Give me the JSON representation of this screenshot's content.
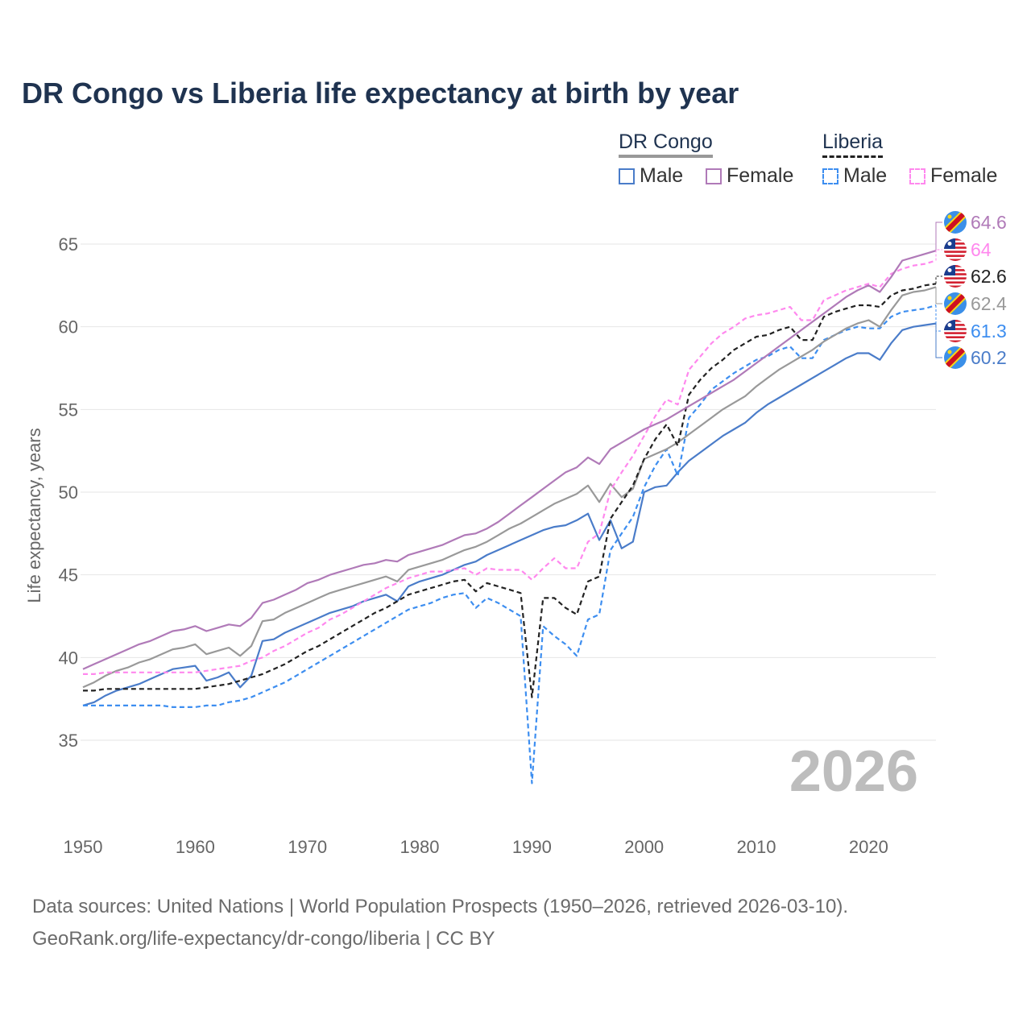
{
  "chart_data": {
    "type": "line",
    "title": "DR Congo vs Liberia life expectancy at birth by year",
    "ylabel": "Life expectancy, years",
    "xlabel": "",
    "xlim": [
      1950,
      2026
    ],
    "ylim": [
      30,
      67
    ],
    "x_ticks": [
      1950,
      1960,
      1970,
      1980,
      1990,
      2000,
      2010,
      2020
    ],
    "y_ticks": [
      35,
      40,
      45,
      50,
      55,
      60,
      65
    ],
    "grid": true,
    "watermark_year": "2026",
    "x_start": 1950,
    "legend": {
      "groups": [
        {
          "name": "DR Congo",
          "items": [
            "Male",
            "Female"
          ]
        },
        {
          "name": "Liberia",
          "items": [
            "Male",
            "Female"
          ]
        }
      ],
      "placement": "top-right"
    },
    "series": [
      {
        "name": "DR Congo Female",
        "country": "DR Congo",
        "flag": "drc",
        "color": "#b07ab8",
        "dashed": false,
        "end_label": "64.6",
        "values": [
          39.3,
          39.6,
          39.9,
          40.2,
          40.5,
          40.8,
          41.0,
          41.3,
          41.6,
          41.7,
          41.9,
          41.6,
          41.8,
          42.0,
          41.9,
          42.4,
          43.3,
          43.5,
          43.8,
          44.1,
          44.5,
          44.7,
          45.0,
          45.2,
          45.4,
          45.6,
          45.7,
          45.9,
          45.8,
          46.2,
          46.4,
          46.6,
          46.8,
          47.1,
          47.4,
          47.5,
          47.8,
          48.2,
          48.7,
          49.2,
          49.7,
          50.2,
          50.7,
          51.2,
          51.5,
          52.1,
          51.7,
          52.6,
          53.0,
          53.4,
          53.8,
          54.1,
          54.4,
          54.8,
          55.2,
          55.6,
          56.0,
          56.4,
          56.8,
          57.3,
          57.8,
          58.3,
          58.8,
          59.3,
          59.8,
          60.3,
          60.8,
          61.3,
          61.8,
          62.2,
          62.5,
          62.1,
          63.0,
          64.0,
          64.2,
          64.4,
          64.6
        ]
      },
      {
        "name": "Liberia Female",
        "country": "Liberia",
        "flag": "lr",
        "color": "#ff88ee",
        "dashed": true,
        "end_label": "64",
        "values": [
          39.0,
          39.0,
          39.1,
          39.1,
          39.1,
          39.1,
          39.1,
          39.1,
          39.1,
          39.1,
          39.1,
          39.2,
          39.3,
          39.4,
          39.5,
          39.8,
          40.0,
          40.4,
          40.7,
          41.1,
          41.5,
          41.8,
          42.3,
          42.6,
          43.0,
          43.4,
          43.8,
          44.2,
          44.5,
          44.8,
          45.0,
          45.2,
          45.2,
          45.3,
          45.4,
          45.0,
          45.4,
          45.3,
          45.3,
          45.3,
          44.7,
          45.4,
          46.0,
          45.4,
          45.4,
          47.0,
          47.5,
          50.1,
          51.2,
          52.2,
          53.4,
          54.6,
          55.6,
          55.3,
          57.4,
          58.2,
          59.0,
          59.6,
          60.0,
          60.5,
          60.7,
          60.8,
          61.0,
          61.2,
          60.4,
          60.4,
          61.6,
          61.9,
          62.2,
          62.4,
          62.6,
          62.4,
          63.2,
          63.5,
          63.7,
          63.8,
          64.0
        ]
      },
      {
        "name": "Liberia Total",
        "country": "Liberia",
        "flag": "lr",
        "color": "#222222",
        "dashed": true,
        "end_label": "62.6",
        "values": [
          38.0,
          38.0,
          38.1,
          38.1,
          38.1,
          38.1,
          38.1,
          38.1,
          38.1,
          38.1,
          38.1,
          38.2,
          38.3,
          38.4,
          38.6,
          38.8,
          39.0,
          39.3,
          39.6,
          40.0,
          40.4,
          40.7,
          41.1,
          41.5,
          41.9,
          42.3,
          42.7,
          43.0,
          43.4,
          43.8,
          44.0,
          44.2,
          44.4,
          44.6,
          44.7,
          44.0,
          44.5,
          44.3,
          44.1,
          43.9,
          37.6,
          43.6,
          43.6,
          43.0,
          42.6,
          44.6,
          44.9,
          48.4,
          49.4,
          50.4,
          52.0,
          53.2,
          54.1,
          52.8,
          55.9,
          56.8,
          57.5,
          58.0,
          58.6,
          59.0,
          59.4,
          59.5,
          59.8,
          60.0,
          59.2,
          59.2,
          60.6,
          60.9,
          61.1,
          61.3,
          61.3,
          61.2,
          61.9,
          62.2,
          62.3,
          62.5,
          62.6
        ]
      },
      {
        "name": "DR Congo Total",
        "country": "DR Congo",
        "flag": "drc",
        "color": "#999999",
        "dashed": false,
        "end_label": "62.4",
        "values": [
          38.2,
          38.5,
          38.9,
          39.2,
          39.4,
          39.7,
          39.9,
          40.2,
          40.5,
          40.6,
          40.8,
          40.2,
          40.4,
          40.6,
          40.1,
          40.7,
          42.2,
          42.3,
          42.7,
          43.0,
          43.3,
          43.6,
          43.9,
          44.1,
          44.3,
          44.5,
          44.7,
          44.9,
          44.6,
          45.3,
          45.5,
          45.7,
          45.9,
          46.2,
          46.5,
          46.7,
          47.0,
          47.4,
          47.8,
          48.1,
          48.5,
          48.9,
          49.3,
          49.6,
          49.9,
          50.4,
          49.4,
          50.5,
          49.7,
          50.2,
          52.0,
          52.3,
          52.6,
          53.0,
          53.5,
          54.0,
          54.5,
          55.0,
          55.4,
          55.8,
          56.4,
          56.9,
          57.4,
          57.8,
          58.2,
          58.6,
          59.1,
          59.5,
          59.9,
          60.2,
          60.4,
          60.0,
          61.0,
          61.9,
          62.1,
          62.2,
          62.4
        ]
      },
      {
        "name": "Liberia Male",
        "country": "Liberia",
        "flag": "lr",
        "color": "#3d8ef0",
        "dashed": true,
        "end_label": "61.3",
        "values": [
          37.1,
          37.1,
          37.1,
          37.1,
          37.1,
          37.1,
          37.1,
          37.1,
          37.0,
          37.0,
          37.0,
          37.1,
          37.1,
          37.3,
          37.4,
          37.6,
          37.9,
          38.2,
          38.5,
          38.9,
          39.3,
          39.7,
          40.1,
          40.5,
          40.9,
          41.3,
          41.7,
          42.1,
          42.5,
          42.9,
          43.1,
          43.3,
          43.6,
          43.8,
          43.9,
          43.0,
          43.6,
          43.3,
          42.9,
          42.5,
          32.4,
          41.9,
          41.3,
          40.8,
          40.1,
          42.3,
          42.6,
          46.5,
          47.5,
          48.5,
          50.3,
          51.6,
          52.6,
          51.0,
          54.5,
          55.3,
          56.2,
          56.7,
          57.2,
          57.6,
          58.0,
          58.2,
          58.6,
          58.8,
          58.1,
          58.1,
          59.2,
          59.5,
          59.8,
          60.0,
          59.9,
          59.9,
          60.6,
          60.9,
          61.0,
          61.1,
          61.3
        ]
      },
      {
        "name": "DR Congo Male",
        "country": "DR Congo",
        "flag": "drc",
        "color": "#4a7cc9",
        "dashed": false,
        "end_label": "60.2",
        "values": [
          37.1,
          37.3,
          37.7,
          38.0,
          38.2,
          38.4,
          38.7,
          39.0,
          39.3,
          39.4,
          39.5,
          38.6,
          38.8,
          39.1,
          38.2,
          38.9,
          41.0,
          41.1,
          41.5,
          41.8,
          42.1,
          42.4,
          42.7,
          42.9,
          43.1,
          43.4,
          43.6,
          43.8,
          43.4,
          44.3,
          44.6,
          44.8,
          45.0,
          45.3,
          45.6,
          45.8,
          46.2,
          46.5,
          46.8,
          47.1,
          47.4,
          47.7,
          47.9,
          48.0,
          48.3,
          48.7,
          47.1,
          48.3,
          46.6,
          47.0,
          50.0,
          50.3,
          50.4,
          51.2,
          51.9,
          52.4,
          52.9,
          53.4,
          53.8,
          54.2,
          54.8,
          55.3,
          55.7,
          56.1,
          56.5,
          56.9,
          57.3,
          57.7,
          58.1,
          58.4,
          58.4,
          58.0,
          59.0,
          59.8,
          60.0,
          60.1,
          60.2
        ]
      }
    ]
  },
  "footer": {
    "line1": "Data sources: United Nations | World Population Prospects (1950–2026, retrieved 2026-03-10).",
    "line2": "GeoRank.org/life-expectancy/dr-congo/liberia | CC BY"
  }
}
